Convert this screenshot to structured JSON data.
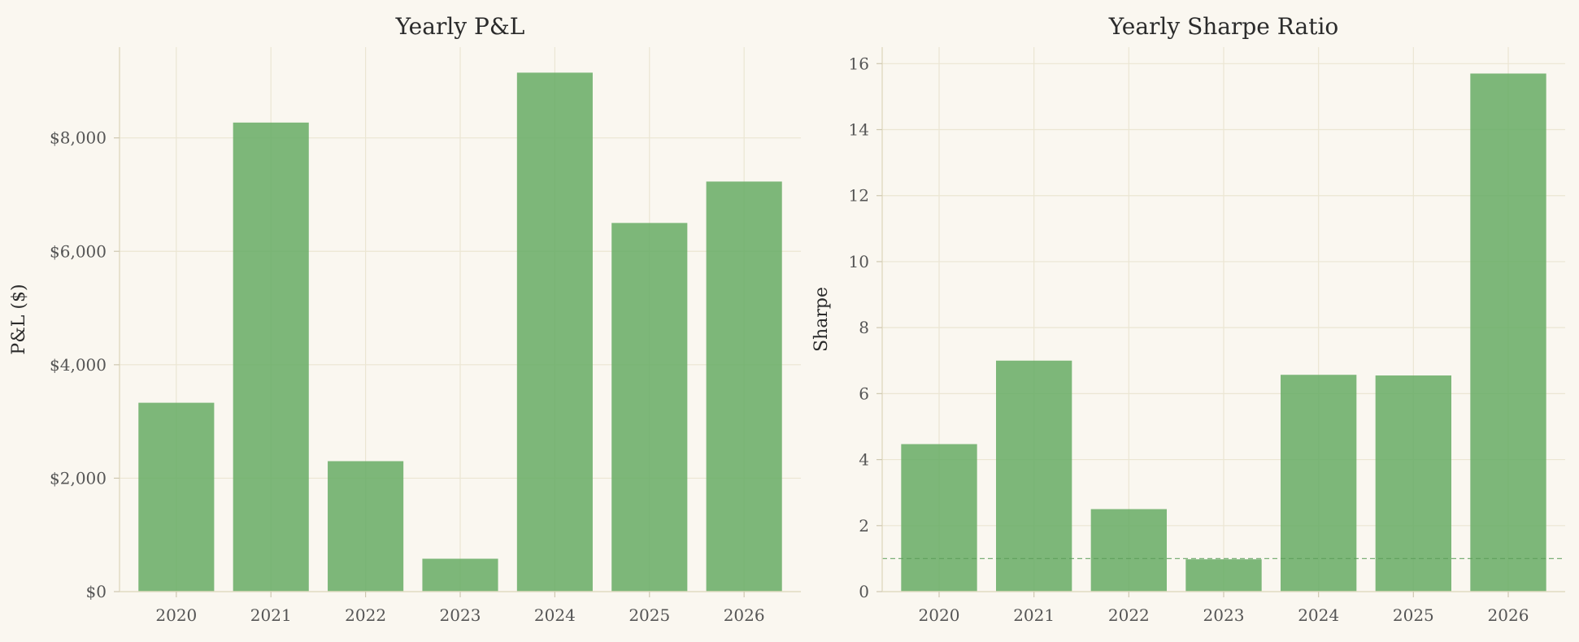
{
  "colors": {
    "background": "#faf7f0",
    "bar": "#66ac64",
    "grid": "#ebe6d3"
  },
  "chart_data": [
    {
      "type": "bar",
      "title": "Yearly P&L",
      "xlabel": "",
      "ylabel": "P&L ($)",
      "categories": [
        "2020",
        "2021",
        "2022",
        "2023",
        "2024",
        "2025",
        "2026"
      ],
      "values": [
        3330,
        8270,
        2300,
        580,
        9150,
        6500,
        7230
      ],
      "ylim": [
        0,
        9600
      ],
      "yticks": [
        0,
        2000,
        4000,
        6000,
        8000
      ],
      "ytick_labels": [
        "$0",
        "$2,000",
        "$4,000",
        "$6,000",
        "$8,000"
      ],
      "grid": true
    },
    {
      "type": "bar",
      "title": "Yearly Sharpe Ratio",
      "xlabel": "",
      "ylabel": "Sharpe",
      "categories": [
        "2020",
        "2021",
        "2022",
        "2023",
        "2024",
        "2025",
        "2026"
      ],
      "values": [
        4.47,
        7.0,
        2.5,
        0.98,
        6.57,
        6.55,
        15.7
      ],
      "ylim": [
        0,
        16.5
      ],
      "yticks": [
        0,
        2,
        4,
        6,
        8,
        10,
        12,
        14,
        16
      ],
      "ytick_labels": [
        "0",
        "2",
        "4",
        "6",
        "8",
        "10",
        "12",
        "14",
        "16"
      ],
      "reference_line": 1.0,
      "grid": true
    }
  ]
}
